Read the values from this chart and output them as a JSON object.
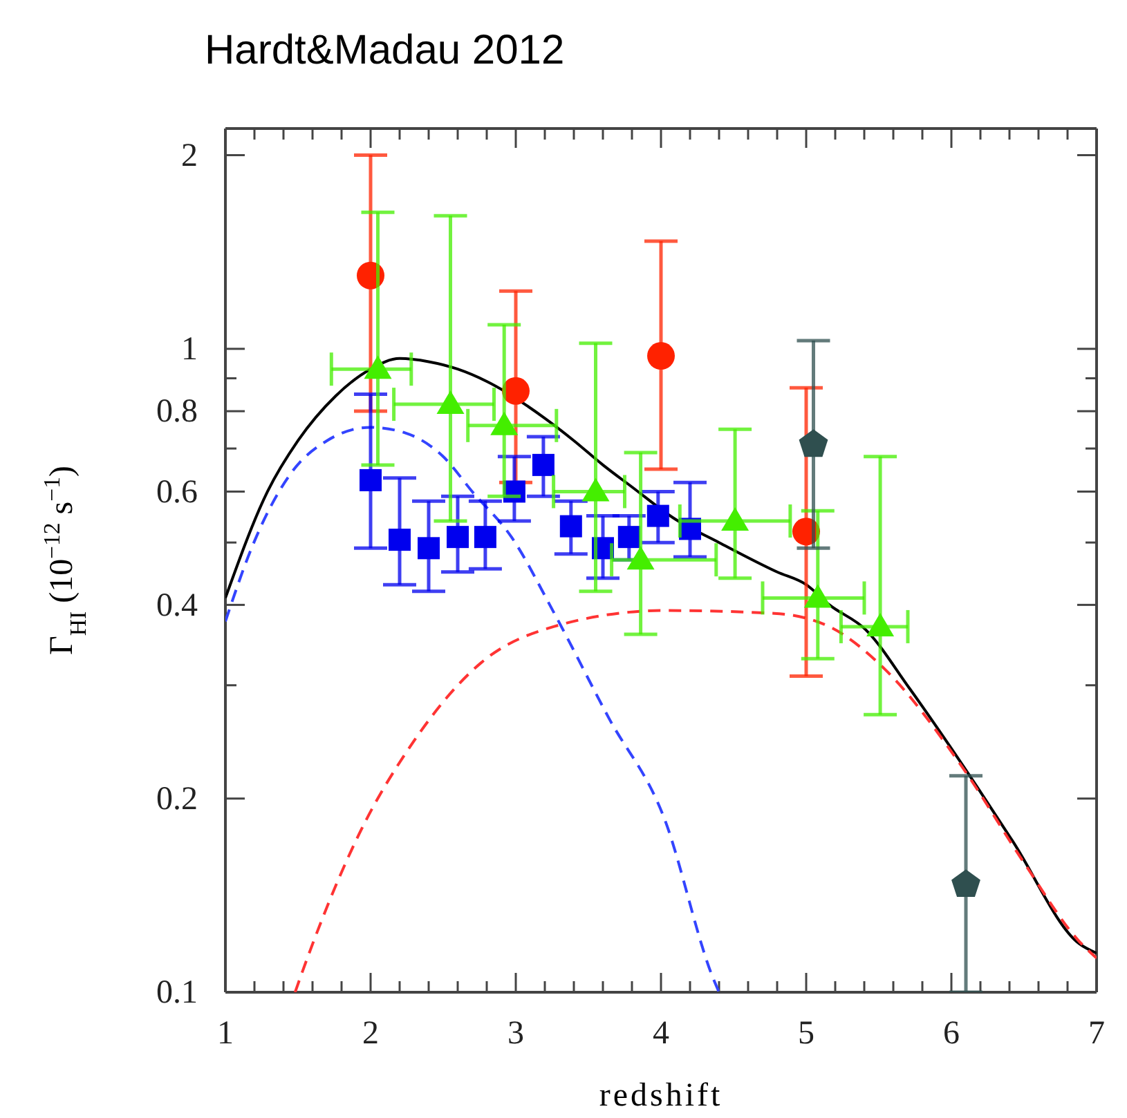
{
  "chart_data": {
    "type": "scatter",
    "title": "Hardt&Madau 2012",
    "xlabel": "redshift",
    "ylabel": "Γ$_{HI}$ (10$^{−12}$ s$^{−1}$)",
    "log": true,
    "grid": false,
    "xlim": [
      1,
      7
    ],
    "xticks": [
      1,
      {
        "value": 1.2,
        "label": null
      },
      {
        "value": 1.4,
        "label": null
      },
      {
        "value": 1.6,
        "label": null
      },
      {
        "value": 1.8,
        "label": null
      },
      2,
      {
        "value": 2.2,
        "label": null
      },
      {
        "value": 2.4,
        "label": null
      },
      {
        "value": 2.6,
        "label": null
      },
      {
        "value": 2.8,
        "label": null
      },
      3,
      {
        "value": 3.2,
        "label": null
      },
      {
        "value": 3.4,
        "label": null
      },
      {
        "value": 3.6,
        "label": null
      },
      {
        "value": 3.8,
        "label": null
      },
      4,
      {
        "value": 4.2,
        "label": null
      },
      {
        "value": 4.4,
        "label": null
      },
      {
        "value": 4.6,
        "label": null
      },
      {
        "value": 4.8,
        "label": null
      },
      5,
      {
        "value": 5.2,
        "label": null
      },
      {
        "value": 5.4,
        "label": null
      },
      {
        "value": 5.6,
        "label": null
      },
      {
        "value": 5.8,
        "label": null
      },
      6,
      {
        "value": 6.2,
        "label": null
      },
      {
        "value": 6.4,
        "label": null
      },
      {
        "value": 6.6,
        "label": null
      },
      {
        "value": 6.8,
        "label": null
      },
      7
    ],
    "ylim": [
      0.1,
      2.2
    ],
    "yticks": [
      0.1,
      0.2,
      {
        "value": 0.3,
        "label": null
      },
      0.4,
      {
        "value": 0.5,
        "label": null
      },
      0.6,
      {
        "value": 0.7,
        "label": null
      },
      0.8,
      {
        "value": 0.9,
        "label": null
      },
      1,
      2
    ],
    "series": [
      {
        "type": "line",
        "color": "#000000",
        "line_style": "solid",
        "x": [
          1,
          1.29,
          1.5,
          1.76,
          2,
          2.2,
          2.4,
          2.6,
          2.8,
          3.2,
          3.4,
          3.6,
          3.8,
          4.09,
          4.4,
          4.8,
          5,
          5.16,
          5.41,
          5.71,
          6.08,
          6.42,
          6.88,
          7
        ],
        "values": [
          0.41,
          0.6,
          0.72,
          0.845,
          0.93,
          0.966,
          0.955,
          0.93,
          0.89,
          0.78,
          0.72,
          0.66,
          0.61,
          0.545,
          0.5,
          0.45,
          0.43,
          0.4,
          0.366,
          0.297,
          0.225,
          0.172,
          0.119,
          0.115
        ]
      },
      {
        "type": "line",
        "color": "#3344ff",
        "line_style": "dashed",
        "x": [
          1,
          1.18,
          1.45,
          1.7,
          2,
          2.24,
          2.5,
          2.7,
          2.97,
          3.26,
          3.64,
          4.02,
          4.36,
          4.4
        ],
        "values": [
          0.377,
          0.49,
          0.64,
          0.72,
          0.755,
          0.74,
          0.68,
          0.6,
          0.51,
          0.39,
          0.267,
          0.187,
          0.105,
          0.1
        ]
      },
      {
        "type": "line",
        "color": "#ff3333",
        "line_style": "dashed",
        "x": [
          1.48,
          1.5,
          1.92,
          2.3,
          2.76,
          3.26,
          4.02,
          4.78,
          5.16,
          5.54,
          6.08,
          6.5,
          6.88,
          7
        ],
        "values": [
          0.1,
          0.103,
          0.176,
          0.246,
          0.325,
          0.37,
          0.392,
          0.388,
          0.37,
          0.318,
          0.223,
          0.159,
          0.12,
          0.113
        ]
      },
      {
        "marker": "circle",
        "color": "#ff2200",
        "x": [
          2,
          3,
          4,
          5
        ],
        "values": [
          1.3,
          0.86,
          0.975,
          0.52
        ],
        "errors": [
          [
            0.8,
            2.0
          ],
          [
            0.62,
            1.23
          ],
          [
            0.65,
            1.47
          ],
          [
            0.31,
            0.87
          ]
        ]
      },
      {
        "marker": "square",
        "color": "#0000ee",
        "x": [
          2,
          2.2,
          2.4,
          2.6,
          2.79,
          2.99,
          3.19,
          3.38,
          3.6,
          3.78,
          3.98,
          4.2
        ],
        "values": [
          0.625,
          0.505,
          0.49,
          0.51,
          0.51,
          0.6,
          0.66,
          0.53,
          0.49,
          0.51,
          0.55,
          0.525
        ],
        "errors": [
          [
            0.49,
            0.85
          ],
          [
            0.43,
            0.63
          ],
          [
            0.42,
            0.58
          ],
          [
            0.45,
            0.59
          ],
          [
            0.455,
            0.58
          ],
          [
            0.54,
            0.68
          ],
          [
            0.59,
            0.73
          ],
          [
            0.48,
            0.58
          ],
          [
            0.44,
            0.55
          ],
          [
            0.47,
            0.55
          ],
          [
            0.5,
            0.6
          ],
          [
            0.475,
            0.62
          ]
        ]
      },
      {
        "marker": "triangle",
        "color": "#44ee00",
        "x": [
          2.05,
          2.55,
          2.92,
          3.55,
          3.86,
          4.51,
          5.08,
          5.51
        ],
        "values": [
          0.93,
          0.82,
          0.76,
          0.6,
          0.47,
          0.54,
          0.41,
          0.37
        ],
        "errors": [
          [
            0.66,
            1.63
          ],
          [
            0.54,
            1.61
          ],
          [
            0.59,
            1.09
          ],
          [
            0.42,
            1.02
          ],
          [
            0.36,
            0.69
          ],
          [
            0.44,
            0.75
          ],
          [
            0.33,
            0.56
          ],
          [
            0.27,
            0.68
          ]
        ],
        "xerrors": [
          [
            1.73,
            2.28
          ],
          [
            2.16,
            2.85
          ],
          [
            2.67,
            3.28
          ],
          [
            3.26,
            3.75
          ],
          [
            3.66,
            4.38
          ],
          [
            4.13,
            4.89
          ],
          [
            4.7,
            5.4
          ],
          [
            5.24,
            5.7
          ]
        ]
      },
      {
        "color": "#2f4f4f",
        "x": [
          5.05,
          6.1
        ],
        "values": [
          0.71,
          0.147
        ],
        "errors": [
          [
            0.49,
            1.03
          ],
          [
            0.1,
            0.217
          ]
        ]
      }
    ]
  }
}
